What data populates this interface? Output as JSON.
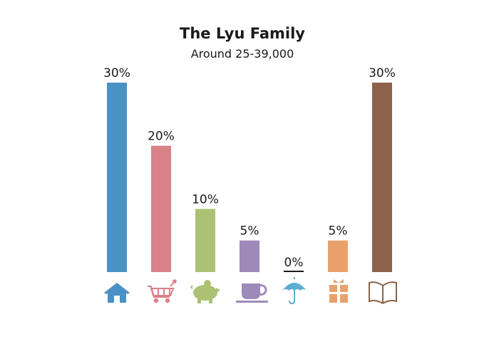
{
  "chart_data": {
    "type": "bar",
    "title": "The Lyu Family",
    "subtitle": "Around 25-39,000",
    "categories": [
      "housing",
      "shopping",
      "savings",
      "food-drink",
      "insurance",
      "gifts",
      "education"
    ],
    "values": [
      30,
      20,
      10,
      5,
      0,
      5,
      30
    ],
    "value_labels": [
      "30%",
      "20%",
      "10%",
      "5%",
      "0%",
      "5%",
      "30%"
    ],
    "colors": [
      "#4a91c6",
      "#d98088",
      "#acc173",
      "#9e8ab8",
      "#5aaed0",
      "#e9a16c",
      "#8d624a"
    ],
    "icons": [
      "house-icon",
      "shopping-cart-icon",
      "piggy-bank-icon",
      "coffee-cup-icon",
      "umbrella-icon",
      "gift-icon",
      "book-icon"
    ],
    "ylim": [
      0,
      30
    ],
    "grid": false,
    "legend": "none"
  }
}
